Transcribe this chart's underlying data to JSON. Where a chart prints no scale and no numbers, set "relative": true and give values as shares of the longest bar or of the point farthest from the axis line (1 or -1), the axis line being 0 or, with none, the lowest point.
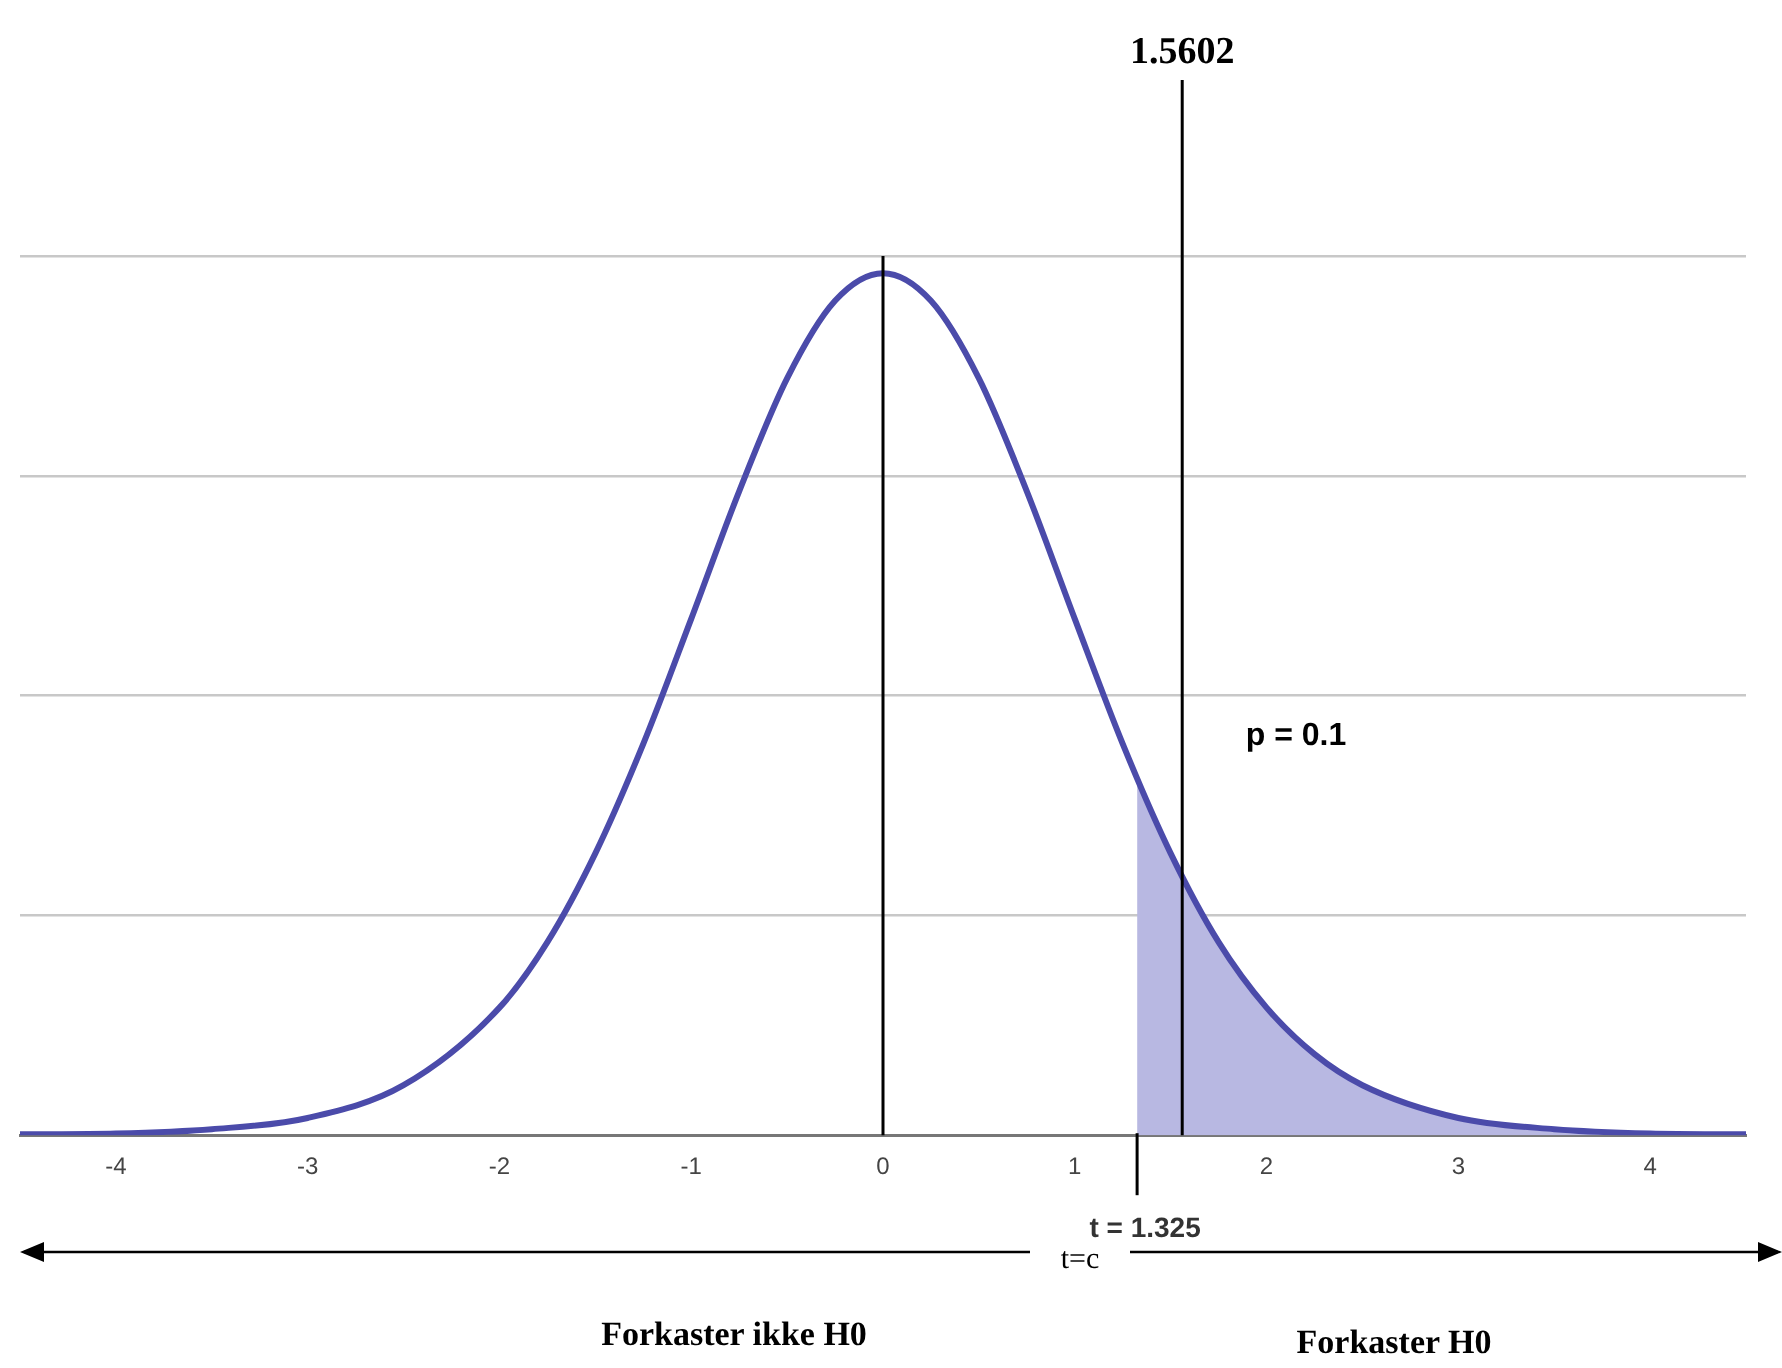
{
  "chart_data": {
    "type": "line",
    "relative": true,
    "grid": "y",
    "xlim": [
      -4.5,
      4.5
    ],
    "xticks": [
      -4,
      -3,
      -2,
      -1,
      0,
      1,
      2,
      3,
      4
    ],
    "series": [
      {
        "type": "line",
        "color": "#4b4baa",
        "x": [
          -4.5,
          -4,
          -3.5,
          -3,
          -2.5,
          -2,
          -1.75,
          -1.5,
          -1.25,
          -1,
          -0.75,
          -0.5,
          -0.25,
          0,
          0.25,
          0.5,
          0.75,
          1,
          1.25,
          1.5,
          1.75,
          2,
          2.25,
          2.5,
          3,
          3.5,
          4,
          4.5
        ],
        "values": [
          0.001,
          0.002,
          0.007,
          0.02,
          0.058,
          0.148,
          0.224,
          0.327,
          0.454,
          0.599,
          0.747,
          0.878,
          0.968,
          1,
          0.968,
          0.878,
          0.747,
          0.599,
          0.454,
          0.327,
          0.224,
          0.148,
          0.094,
          0.058,
          0.02,
          0.007,
          0.002,
          0.001
        ]
      },
      {
        "type": "area",
        "color": "#b8b8e2",
        "x": [
          1.325,
          1.5602,
          1.75,
          2,
          2.25,
          2.5,
          3,
          3.5,
          4,
          4.5
        ],
        "values": [
          0.413,
          0.299,
          0.224,
          0.148,
          0.094,
          0.058,
          0.02,
          0.007,
          0.002,
          0.001
        ]
      }
    ],
    "ref_lines": [
      {
        "axis": "x",
        "value": 0,
        "color": "#000000"
      },
      {
        "axis": "x",
        "value": 1.5602,
        "label": "1.5602",
        "color": "#000000"
      },
      {
        "axis": "x",
        "value": 1.325,
        "label": "t = 1.325",
        "color": "#000000"
      }
    ],
    "annotations": [
      "p = 0.1",
      "t=c",
      "Forkaster ikke H0",
      "Forkaster H0"
    ]
  }
}
